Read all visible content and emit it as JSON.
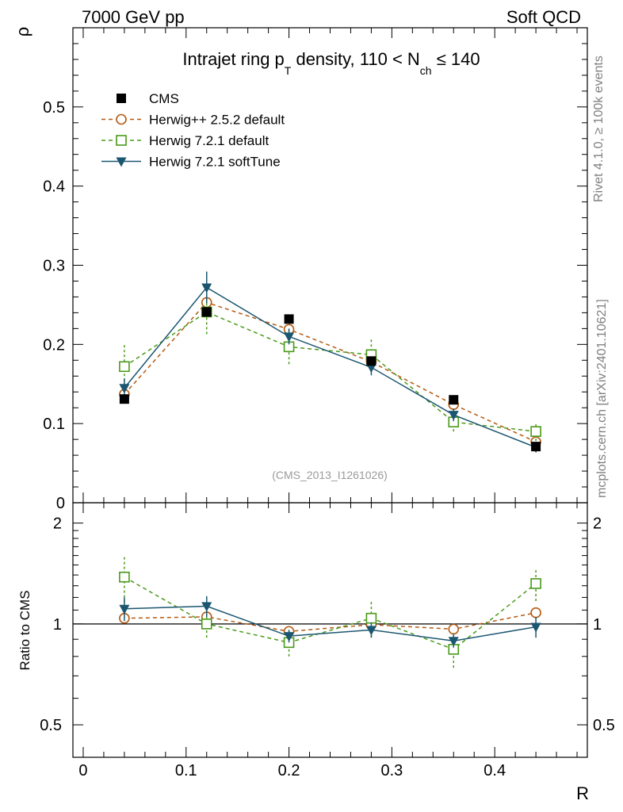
{
  "header": {
    "left": "7000 GeV pp",
    "right": "Soft QCD"
  },
  "side": {
    "rivet": "Rivet 4.1.0, ≥ 100k events",
    "mcplots": "mcplots.cern.ch [arXiv:2401.10621]"
  },
  "watermark": "(CMS_2013_I1261026)",
  "chart_data": {
    "type": "scatter",
    "title": {
      "main": "Intrajet ring p",
      "sub_T": "T",
      "mid": " density, 110 < N",
      "sub_ch": "ch",
      "end": " ≤ 140"
    },
    "xlabel": "R",
    "ylabel": "ρ",
    "ratio_ylabel": "Ratio to CMS",
    "xlim": [
      -0.01,
      0.49
    ],
    "ylim": [
      0,
      0.6
    ],
    "ratio_ylim": [
      0.4,
      2.3
    ],
    "x_ticks": [
      0,
      0.1,
      0.2,
      0.3,
      0.4
    ],
    "x_tick_labels": [
      "0",
      "0.1",
      "0.2",
      "0.3",
      "0.4"
    ],
    "y_ticks": [
      0,
      0.1,
      0.2,
      0.3,
      0.4,
      0.5
    ],
    "y_tick_labels": [
      "0",
      "0.1",
      "0.2",
      "0.3",
      "0.4",
      "0.5"
    ],
    "ratio_ticks": [
      0.5,
      1,
      2
    ],
    "ratio_tick_labels": [
      "0.5",
      "1",
      "2"
    ],
    "x": [
      0.04,
      0.12,
      0.2,
      0.28,
      0.36,
      0.44
    ],
    "series": [
      {
        "name": "CMS",
        "color": "#000000",
        "marker": "square-filled",
        "line": "none",
        "values": [
          0.131,
          0.241,
          0.232,
          0.179,
          0.13,
          0.071
        ],
        "errors": [
          0,
          0,
          0,
          0,
          0,
          0
        ],
        "ratio": [
          1,
          1,
          1,
          1,
          1,
          1
        ],
        "ratio_errors": [
          0,
          0,
          0,
          0,
          0,
          0
        ]
      },
      {
        "name": "Herwig++ 2.5.2 default",
        "color": "#b35a14",
        "marker": "circle-open",
        "line": "dashed",
        "values": [
          0.137,
          0.253,
          0.219,
          0.178,
          0.124,
          0.077
        ],
        "errors": [
          0.003,
          0.003,
          0.003,
          0.003,
          0.003,
          0.003
        ],
        "ratio": [
          1.04,
          1.05,
          0.95,
          0.995,
          0.965,
          1.08
        ],
        "ratio_errors": [
          0.02,
          0.02,
          0.01,
          0.01,
          0.01,
          0.02
        ]
      },
      {
        "name": "Herwig 7.2.1 default",
        "color": "#4a9a1a",
        "marker": "square-open",
        "line": "dashed",
        "values": [
          0.172,
          0.241,
          0.197,
          0.187,
          0.102,
          0.09
        ],
        "errors": [
          0.03,
          0.028,
          0.022,
          0.02,
          0.012,
          0.012
        ],
        "ratio": [
          1.38,
          1.0,
          0.88,
          1.04,
          0.84,
          1.32
        ],
        "ratio_errors": [
          0.22,
          0.09,
          0.08,
          0.13,
          0.1,
          0.15
        ]
      },
      {
        "name": "Herwig 7.2.1 softTune",
        "color": "#1b5670",
        "marker": "triangle-down-filled",
        "line": "solid",
        "values": [
          0.145,
          0.272,
          0.21,
          0.171,
          0.111,
          0.07
        ],
        "errors": [
          0.012,
          0.02,
          0.01,
          0.01,
          0.008,
          0.006
        ],
        "ratio": [
          1.11,
          1.13,
          0.92,
          0.96,
          0.89,
          0.98
        ],
        "ratio_errors": [
          0.09,
          0.08,
          0.04,
          0.05,
          0.04,
          0.07
        ]
      }
    ]
  }
}
